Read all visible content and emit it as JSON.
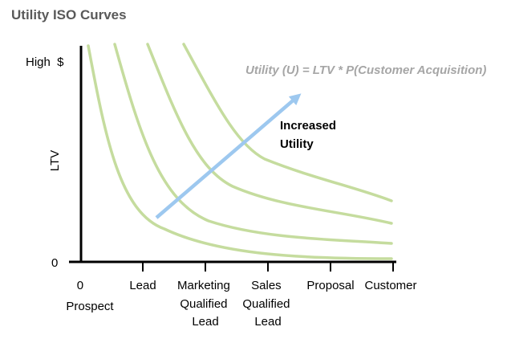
{
  "title": "Utility ISO Curves",
  "formula": "Utility (U) = LTV * P(Customer Acquisition)",
  "arrow_label": [
    "Increased",
    "Utility"
  ],
  "y_axis": {
    "label": "LTV",
    "top_label": "High  $",
    "bottom_label": "0"
  },
  "x_axis": {
    "ticks": [
      {
        "lines": [
          "0",
          "Prospect"
        ]
      },
      {
        "lines": [
          "Lead"
        ]
      },
      {
        "lines": [
          "Marketing",
          "Qualified",
          "Lead"
        ]
      },
      {
        "lines": [
          "Sales",
          "Qualified",
          "Lead"
        ]
      },
      {
        "lines": [
          "Proposal"
        ]
      },
      {
        "lines": [
          "Customer"
        ]
      }
    ]
  },
  "curve_count": 4,
  "colors": {
    "curve": "#c5dc9e",
    "arrow": "#9dc8ef",
    "axis": "#000000",
    "title": "#595959",
    "formula": "#a6a6a6"
  }
}
